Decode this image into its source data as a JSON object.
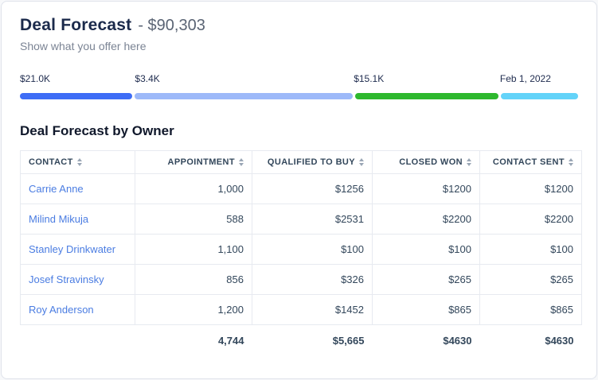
{
  "page": {
    "title": "Deal Forecast",
    "title_suffix": "- $90,303",
    "subtitle": "Show what you offer here"
  },
  "progress": {
    "segments": [
      {
        "label": "$21.0K",
        "color": "#3e6df6",
        "width_pct": 20.2,
        "offset_pct": 0
      },
      {
        "label": "$3.4K",
        "color": "#9db9f9",
        "width_pct": 39.0,
        "offset_pct": 20.6
      },
      {
        "label": "$15.1K",
        "color": "#2eb82e",
        "width_pct": 25.8,
        "offset_pct": 59.8
      },
      {
        "label": "Feb 1, 2022",
        "color": "#63d3f9",
        "width_pct": 13.8,
        "offset_pct": 86.0
      }
    ]
  },
  "table": {
    "title": "Deal Forecast by Owner",
    "columns": [
      {
        "label": "CONTACT"
      },
      {
        "label": "APPOINTMENT"
      },
      {
        "label": "QUALIFIED TO BUY"
      },
      {
        "label": "CLOSED WON"
      },
      {
        "label": "CONTACT SENT"
      }
    ],
    "rows": [
      {
        "contact": "Carrie Anne",
        "cells": [
          "1,000",
          "$1256",
          "$1200",
          "$1200"
        ]
      },
      {
        "contact": "Milind Mikuja",
        "cells": [
          "588",
          "$2531",
          "$2200",
          "$2200"
        ]
      },
      {
        "contact": "Stanley Drinkwater",
        "cells": [
          "1,100",
          "$100",
          "$100",
          "$100"
        ]
      },
      {
        "contact": "Josef Stravinsky",
        "cells": [
          "856",
          "$326",
          "$265",
          "$265"
        ]
      },
      {
        "contact": "Roy Anderson",
        "cells": [
          "1,200",
          "$1452",
          "$865",
          "$865"
        ]
      }
    ],
    "totals": [
      "",
      "4,744",
      "$5,665",
      "$4630",
      "$4630"
    ]
  }
}
